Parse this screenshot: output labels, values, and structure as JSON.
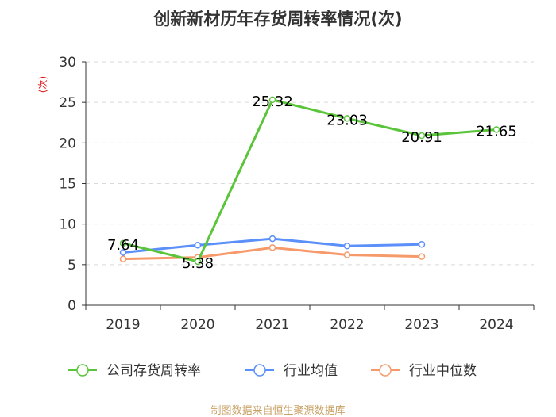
{
  "chart_data": {
    "type": "line",
    "title": "创新新材历年存货周转率情况(次)",
    "ylabel": "(次)",
    "xlabel": "",
    "ylim": [
      0,
      30
    ],
    "yticks": [
      0,
      5,
      10,
      15,
      20,
      25,
      30
    ],
    "categories": [
      "2019",
      "2020",
      "2021",
      "2022",
      "2023",
      "2024"
    ],
    "series": [
      {
        "name": "公司存货周转率",
        "color": "#5ac53a",
        "values": [
          7.64,
          5.38,
          25.32,
          23.03,
          20.91,
          21.65
        ],
        "labels": [
          "7.64",
          "5.38",
          "25.32",
          "23.03",
          "20.91",
          "21.65"
        ]
      },
      {
        "name": "行业均值",
        "color": "#5b8ff9",
        "values": [
          6.5,
          7.4,
          8.2,
          7.3,
          7.5,
          null
        ]
      },
      {
        "name": "行业中位数",
        "color": "#f79a6b",
        "values": [
          5.7,
          5.9,
          7.1,
          6.2,
          6.0,
          null
        ]
      }
    ]
  },
  "source": "制图数据来自恒生聚源数据库"
}
